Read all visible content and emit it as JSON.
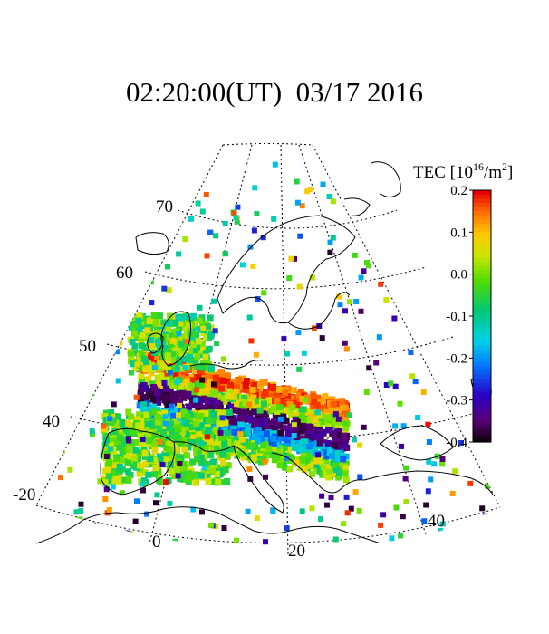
{
  "title": "02:20:00(UT)  03/17 2016",
  "colorbar": {
    "label_main": "TEC [10",
    "label_exp": "16",
    "label_unit": "/m",
    "label_sq": "2",
    "label_close": "]",
    "min": -0.4,
    "max": 0.2,
    "ticks": [
      "0.2",
      "0.1",
      "0.0",
      "-0.1",
      "-0.2",
      "-0.3",
      "-0.4"
    ]
  },
  "map": {
    "latitude_labels": [
      "70",
      "60",
      "50",
      "40"
    ],
    "longitude_labels": [
      "-20",
      "0",
      "20",
      "40"
    ]
  }
}
